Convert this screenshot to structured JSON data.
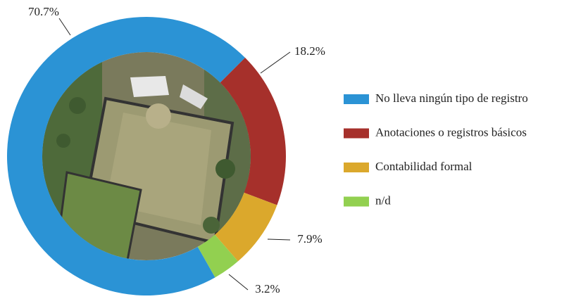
{
  "chart_data": {
    "type": "donut",
    "categories": [
      "No lleva ningún tipo de registro",
      "Anotaciones o registros básicos",
      "Contabilidad formal",
      "n/d"
    ],
    "values": [
      70.7,
      18.2,
      7.9,
      3.2
    ],
    "value_labels": [
      "70.7%",
      "18.2%",
      "7.9%",
      "3.2%"
    ],
    "colors": [
      "#2b93d5",
      "#a6302b",
      "#dba82c",
      "#92d050"
    ],
    "legend": "right"
  }
}
